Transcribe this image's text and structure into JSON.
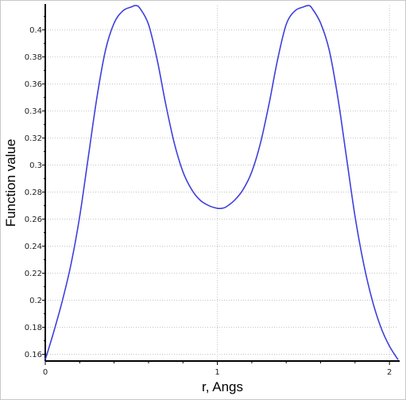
{
  "chart_data": {
    "type": "line",
    "xlabel": "r, Angs",
    "ylabel": "Function value",
    "xlim": [
      0,
      2.05
    ],
    "ylim": [
      0.155,
      0.418
    ],
    "grid": true,
    "x_ticks": [
      {
        "value": 0,
        "label": "0"
      },
      {
        "value": 1,
        "label": "1"
      },
      {
        "value": 2,
        "label": "2"
      }
    ],
    "y_ticks": [
      {
        "value": 0.16,
        "label": "0.16"
      },
      {
        "value": 0.18,
        "label": "0.18"
      },
      {
        "value": 0.2,
        "label": "0.2"
      },
      {
        "value": 0.22,
        "label": "0.22"
      },
      {
        "value": 0.24,
        "label": "0.24"
      },
      {
        "value": 0.26,
        "label": "0.26"
      },
      {
        "value": 0.28,
        "label": "0.28"
      },
      {
        "value": 0.3,
        "label": "0.3"
      },
      {
        "value": 0.32,
        "label": "0.32"
      },
      {
        "value": 0.34,
        "label": "0.34"
      },
      {
        "value": 0.36,
        "label": "0.36"
      },
      {
        "value": 0.38,
        "label": "0.38"
      },
      {
        "value": 0.4,
        "label": "0.4"
      }
    ],
    "series": [
      {
        "color": "#3f3fdc",
        "x": [
          0,
          0.05,
          0.1,
          0.15,
          0.2,
          0.25,
          0.3,
          0.35,
          0.4,
          0.45,
          0.5,
          0.525,
          0.55,
          0.6,
          0.65,
          0.7,
          0.75,
          0.8,
          0.85,
          0.9,
          0.95,
          1.0,
          1.025,
          1.05,
          1.1,
          1.15,
          1.2,
          1.25,
          1.3,
          1.35,
          1.4,
          1.45,
          1.5,
          1.53,
          1.55,
          1.6,
          1.65,
          1.7,
          1.75,
          1.8,
          1.85,
          1.9,
          1.95,
          2.0,
          2.05
        ],
        "values": [
          0.156,
          0.177,
          0.2,
          0.227,
          0.262,
          0.306,
          0.35,
          0.385,
          0.405,
          0.414,
          0.417,
          0.418,
          0.416,
          0.404,
          0.378,
          0.345,
          0.316,
          0.295,
          0.282,
          0.274,
          0.27,
          0.268,
          0.268,
          0.269,
          0.274,
          0.282,
          0.295,
          0.316,
          0.345,
          0.378,
          0.404,
          0.414,
          0.417,
          0.418,
          0.416,
          0.405,
          0.385,
          0.35,
          0.306,
          0.262,
          0.227,
          0.2,
          0.18,
          0.166,
          0.156
        ]
      }
    ]
  }
}
